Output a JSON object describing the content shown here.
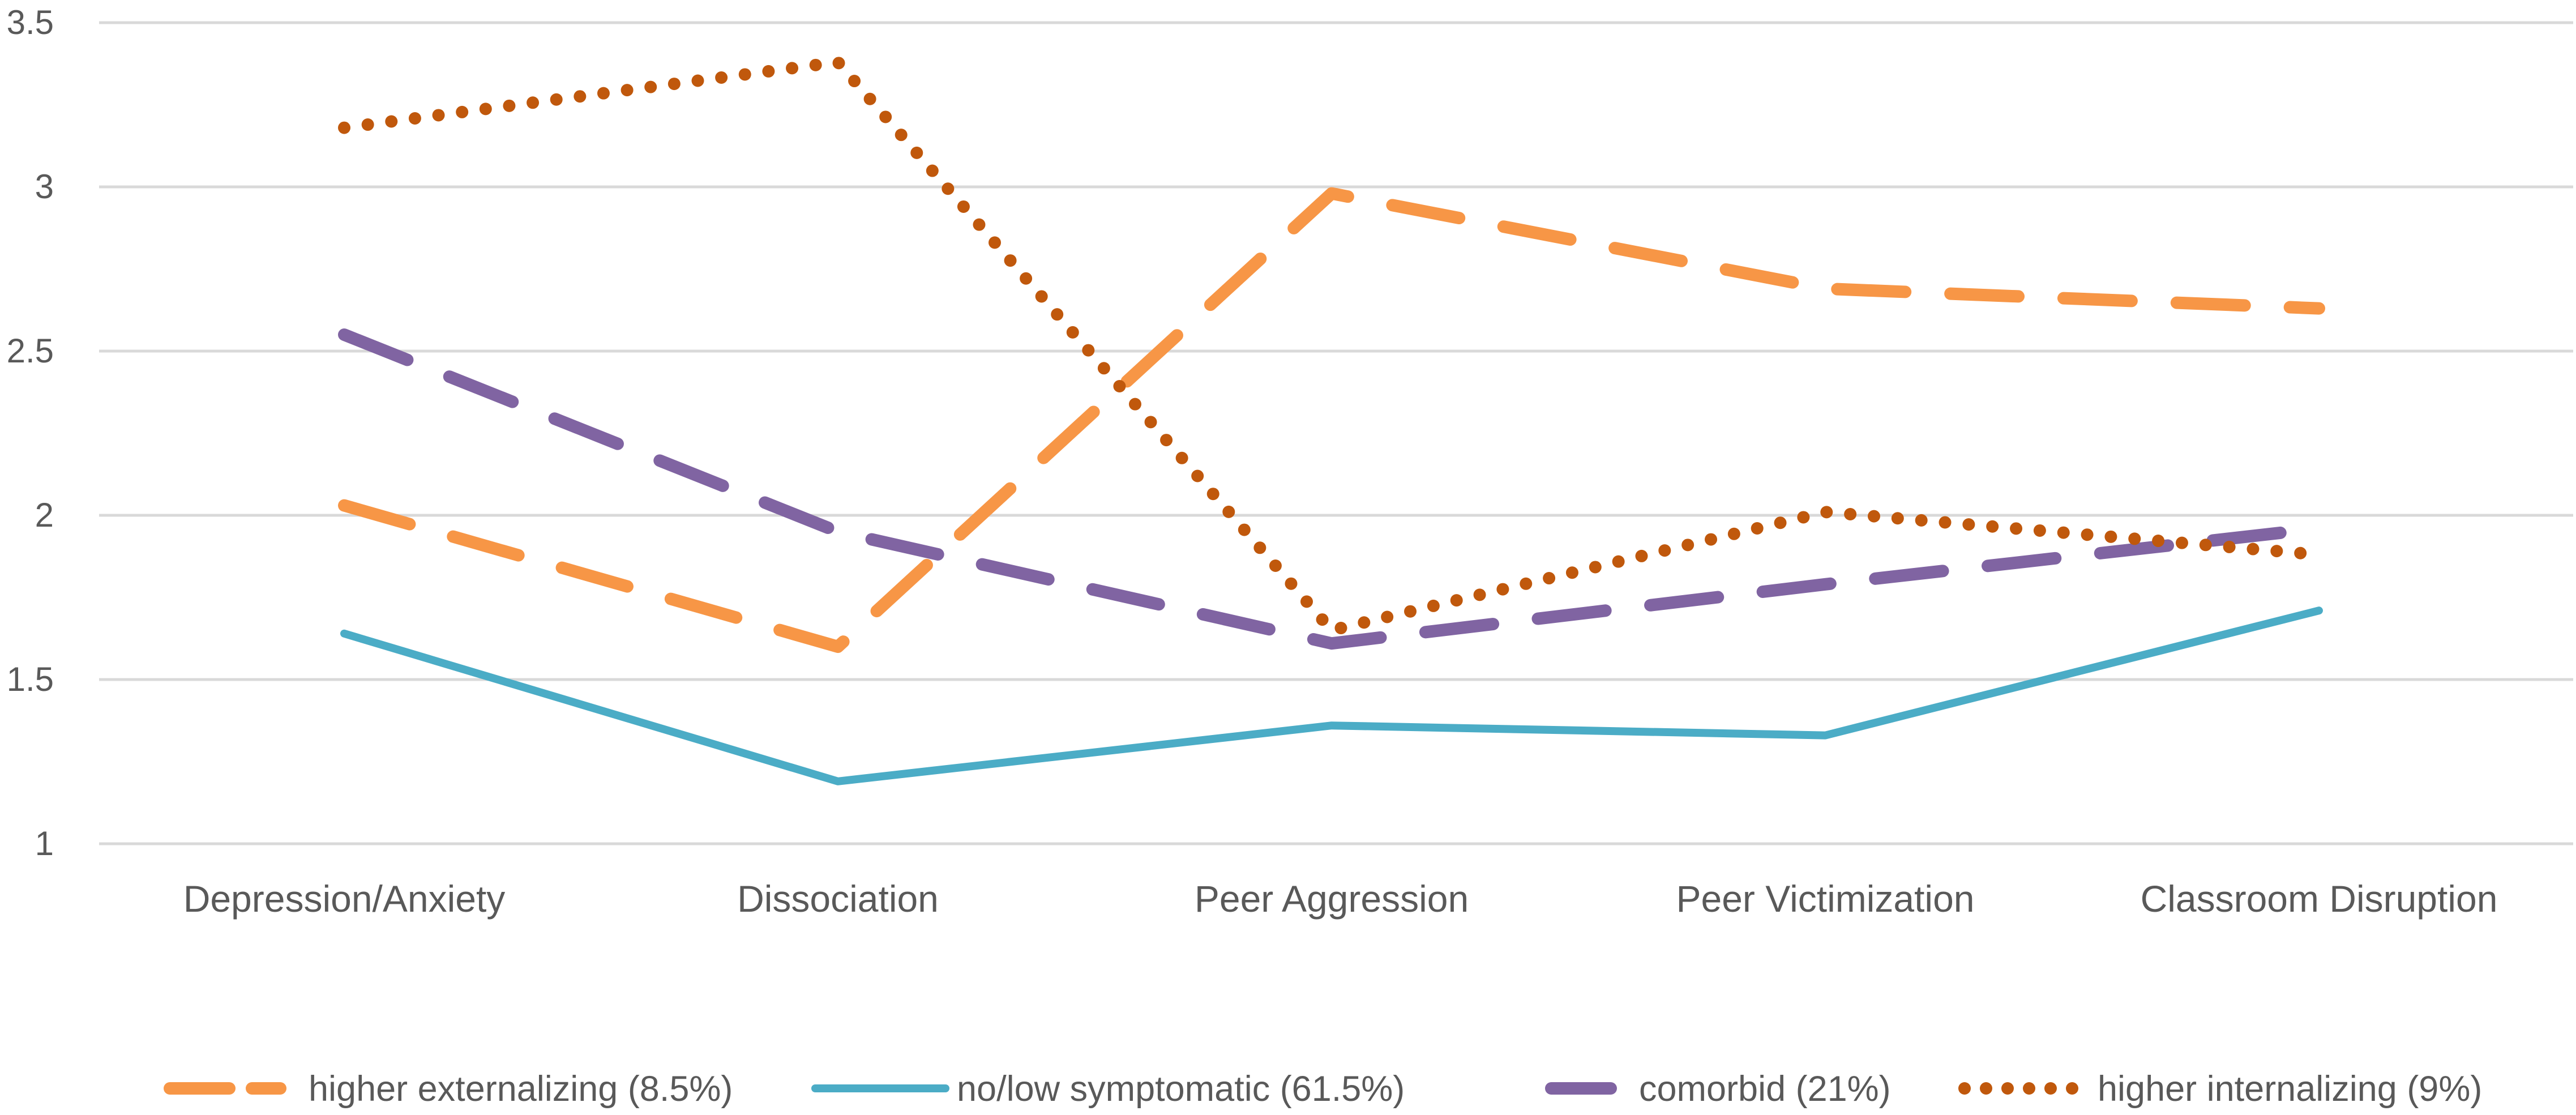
{
  "chart_data": {
    "type": "line",
    "title": "",
    "xlabel": "",
    "ylabel": "",
    "ylim": [
      1,
      3.5
    ],
    "yticks": [
      1,
      1.5,
      2,
      2.5,
      3,
      3.5
    ],
    "ytick_labels": [
      "1",
      "1.5",
      "2",
      "2.5",
      "3",
      "3.5"
    ],
    "grid": true,
    "legend_position": "bottom",
    "categories": [
      "Depression/Anxiety",
      "Dissociation",
      "Peer Aggression",
      "Peer Victimization",
      "Classroom Disruption"
    ],
    "series": [
      {
        "name": "higher externalizing (8.5%)",
        "style": "dashed",
        "color": "#F79646",
        "values": [
          2.03,
          1.6,
          2.98,
          2.69,
          2.63
        ]
      },
      {
        "name": "no/low symptomatic (61.5%)",
        "style": "solid",
        "color": "#4BACC6",
        "values": [
          1.64,
          1.19,
          1.36,
          1.33,
          1.71
        ]
      },
      {
        "name": "comorbid (21%)",
        "style": "dashed",
        "color": "#8064A2",
        "values": [
          2.55,
          1.95,
          1.61,
          1.79,
          1.96
        ]
      },
      {
        "name": "higher internalizing (9%)",
        "style": "dotted",
        "color": "#C0580C",
        "values": [
          3.18,
          3.38,
          1.65,
          2.01,
          1.88
        ]
      }
    ]
  }
}
